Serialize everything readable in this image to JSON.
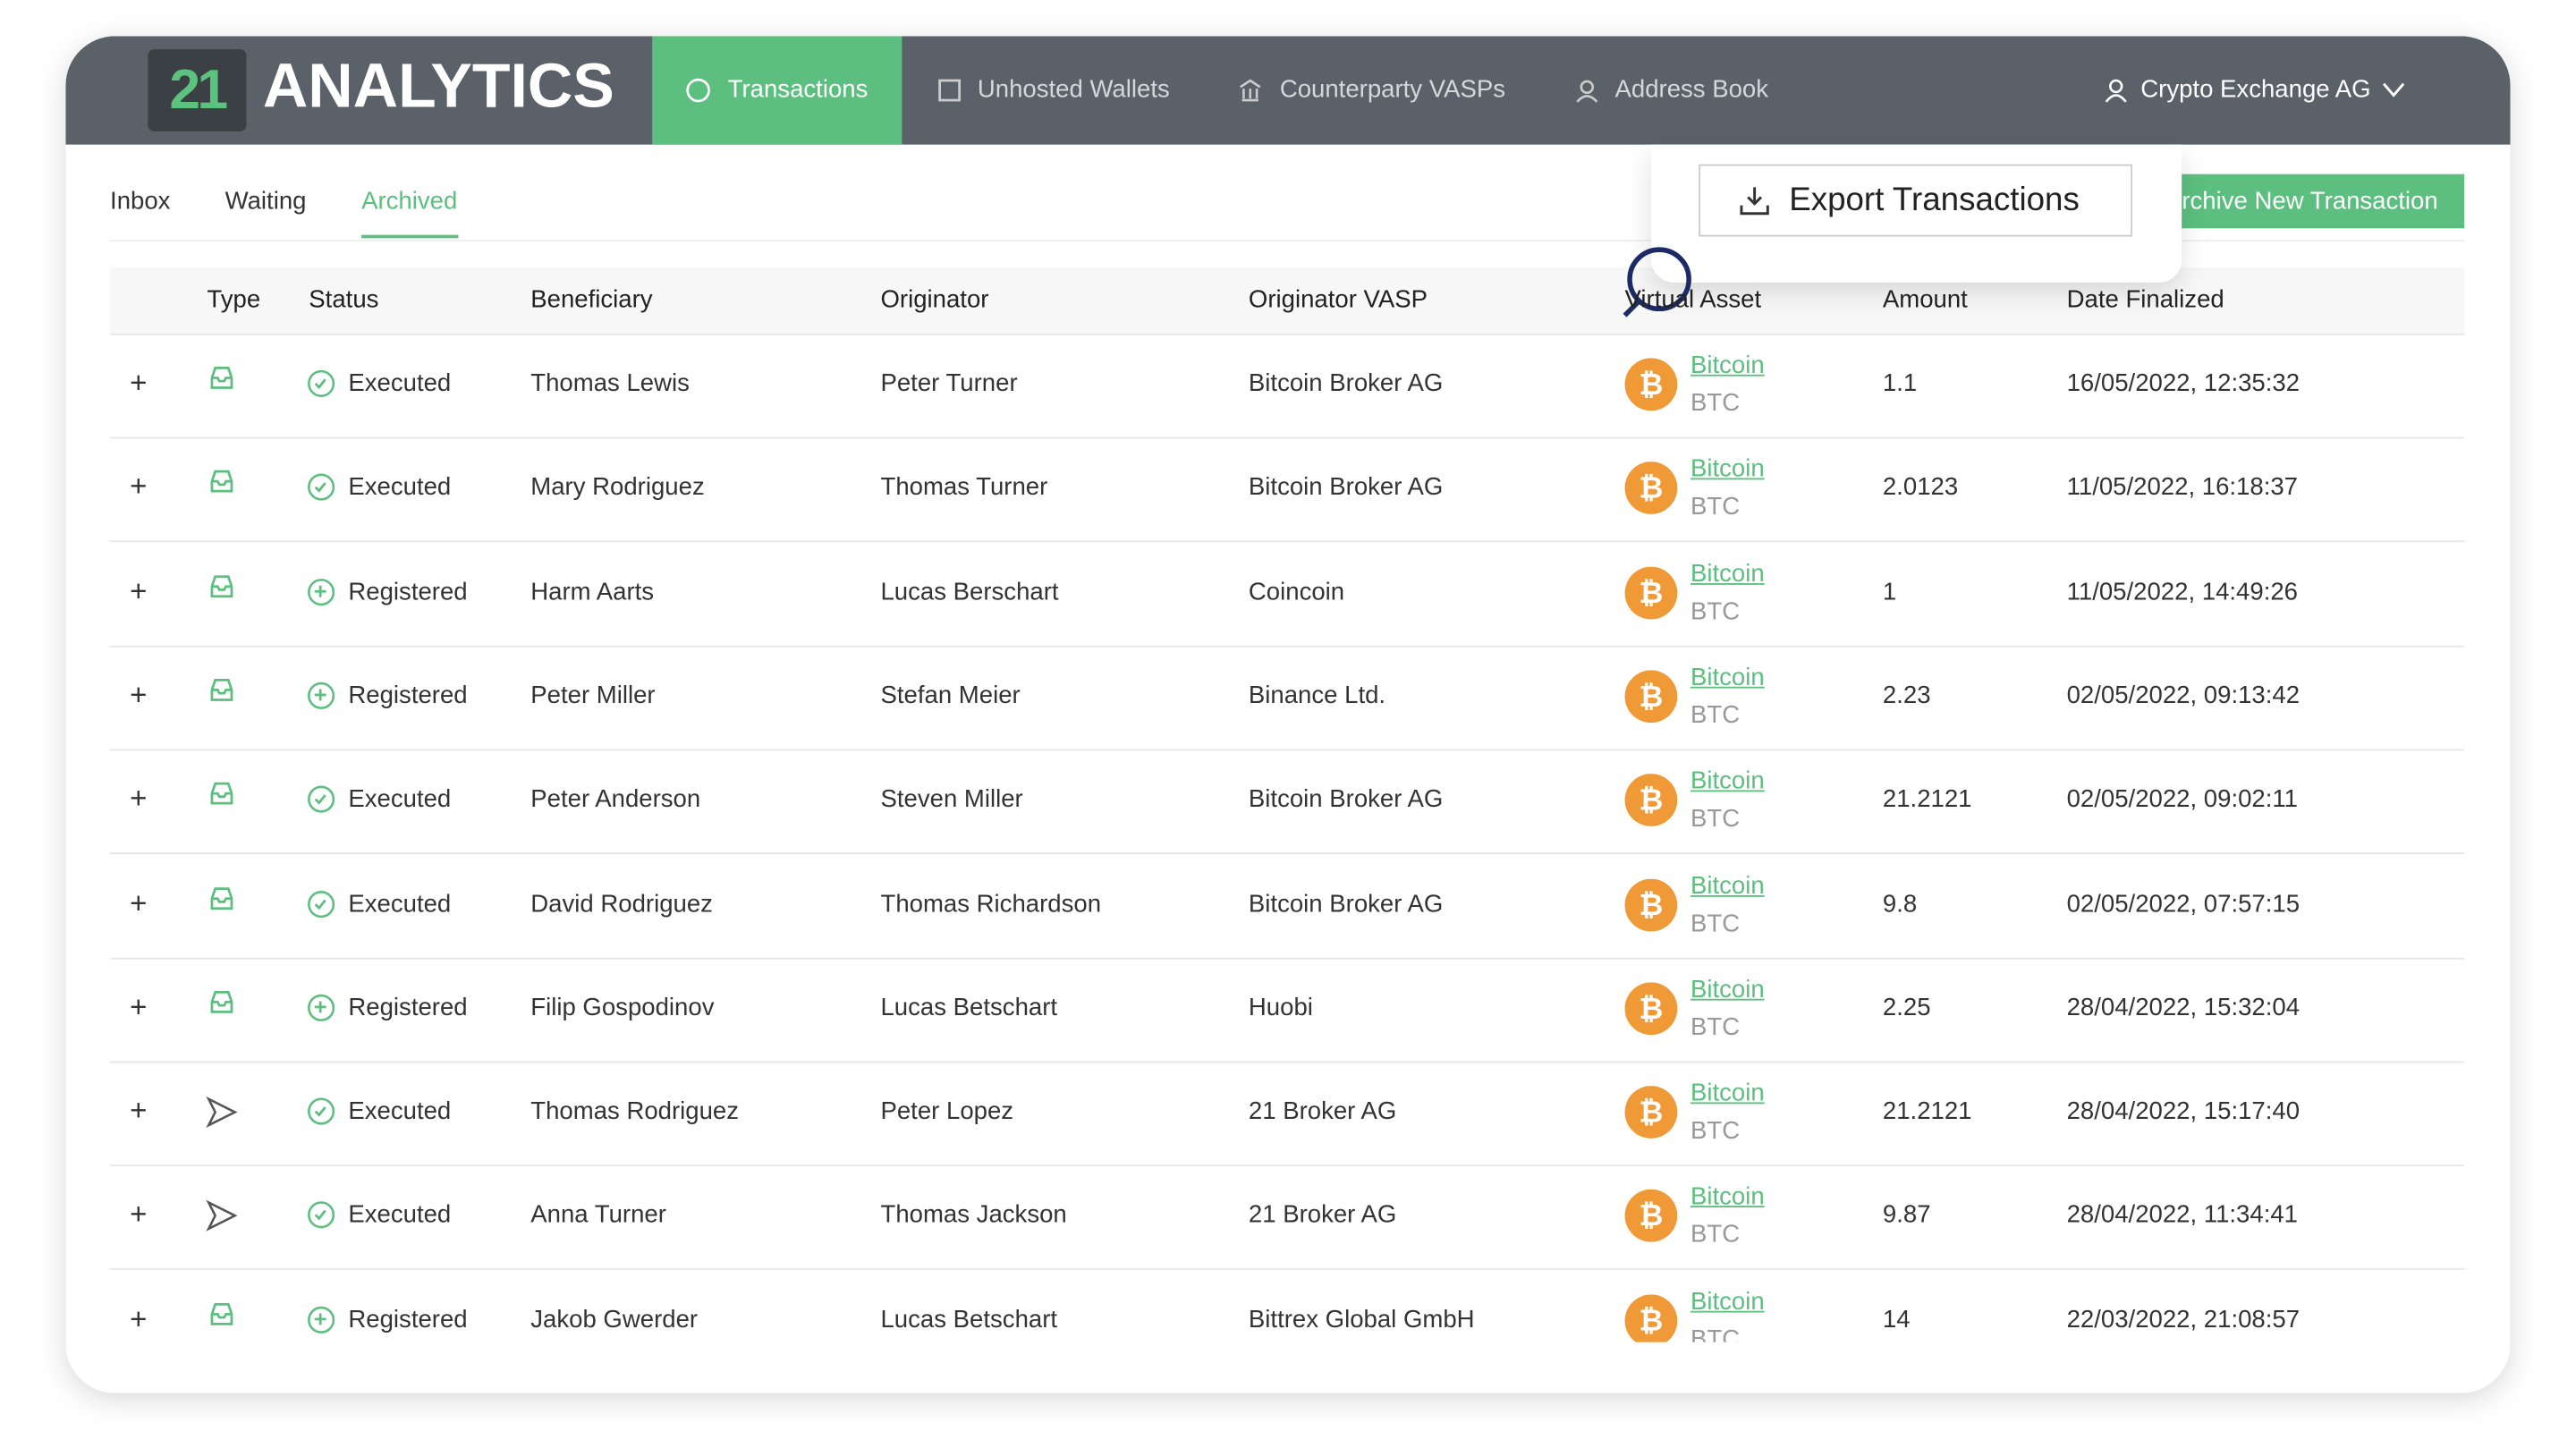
{
  "header": {
    "logo_number": "21",
    "logo_text": "ANALYTICS",
    "nav": [
      "Transactions",
      "Unhosted Wallets",
      "Counterparty VASPs",
      "Address Book"
    ],
    "user": "Crypto Exchange AG"
  },
  "tabs": [
    "Inbox",
    "Waiting",
    "Archived"
  ],
  "buttons": {
    "export": "Export Transactions",
    "archive_new": "Archive New Transaction"
  },
  "table": {
    "columns": [
      "Type",
      "Status",
      "Beneficiary",
      "Originator",
      "Originator VASP",
      "Virtual Asset",
      "Amount",
      "Date Finalized"
    ],
    "rows": [
      {
        "status": "Executed",
        "beneficiary": "Thomas Lewis",
        "originator": "Peter Turner",
        "vasp": "Bitcoin Broker AG",
        "asset": "Bitcoin",
        "ticker": "BTC",
        "amount": "1.1",
        "date": "16/05/2022, 12:35:32"
      },
      {
        "status": "Executed",
        "beneficiary": "Mary Rodriguez",
        "originator": "Thomas Turner",
        "vasp": "Bitcoin Broker AG",
        "asset": "Bitcoin",
        "ticker": "BTC",
        "amount": "2.0123",
        "date": "11/05/2022, 16:18:37"
      },
      {
        "status": "Registered",
        "beneficiary": "Harm Aarts",
        "originator": "Lucas Berschart",
        "vasp": "Coincoin",
        "asset": "Bitcoin",
        "ticker": "BTC",
        "amount": "1",
        "date": "11/05/2022, 14:49:26"
      },
      {
        "status": "Registered",
        "beneficiary": "Peter Miller",
        "originator": "Stefan Meier",
        "vasp": "Binance Ltd.",
        "asset": "Bitcoin",
        "ticker": "BTC",
        "amount": "2.23",
        "date": "02/05/2022, 09:13:42"
      },
      {
        "status": "Executed",
        "beneficiary": "Peter Anderson",
        "originator": "Steven Miller",
        "vasp": "Bitcoin Broker AG",
        "asset": "Bitcoin",
        "ticker": "BTC",
        "amount": "21.2121",
        "date": "02/05/2022, 09:02:11"
      },
      {
        "status": "Executed",
        "beneficiary": "David Rodriguez",
        "originator": "Thomas Richardson",
        "vasp": "Bitcoin Broker AG",
        "asset": "Bitcoin",
        "ticker": "BTC",
        "amount": "9.8",
        "date": "02/05/2022, 07:57:15"
      },
      {
        "status": "Registered",
        "beneficiary": "Filip Gospodinov",
        "originator": "Lucas Betschart",
        "vasp": "Huobi",
        "asset": "Bitcoin",
        "ticker": "BTC",
        "amount": "2.25",
        "date": "28/04/2022, 15:32:04"
      },
      {
        "status": "Executed",
        "beneficiary": "Thomas Rodriguez",
        "originator": "Peter Lopez",
        "vasp": "21 Broker AG",
        "asset": "Bitcoin",
        "ticker": "BTC",
        "amount": "21.2121",
        "date": "28/04/2022, 15:17:40"
      },
      {
        "status": "Executed",
        "beneficiary": "Anna Turner",
        "originator": "Thomas Jackson",
        "vasp": "21 Broker AG",
        "asset": "Bitcoin",
        "ticker": "BTC",
        "amount": "9.87",
        "date": "28/04/2022, 11:34:41"
      },
      {
        "status": "Registered",
        "beneficiary": "Jakob Gwerder",
        "originator": "Lucas Betschart",
        "vasp": "Bittrex Global GmbH",
        "asset": "Bitcoin",
        "ticker": "BTC",
        "amount": "14",
        "date": "22/03/2022, 21:08:57"
      }
    ]
  }
}
